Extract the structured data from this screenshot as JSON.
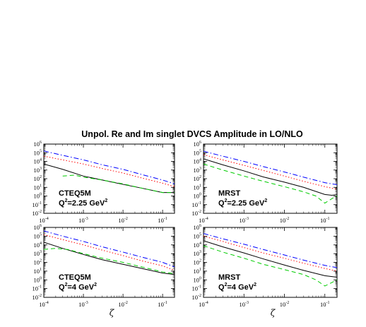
{
  "chart_data": {
    "type": "line",
    "title": "Unpol. Re and Im singlet DVCS Amplitude in LO/NLO",
    "xlabel": "ζ",
    "x_scale": "log",
    "y_scale": "log",
    "xlim": [
      0.0001,
      0.2
    ],
    "ylim": [
      0.01,
      1000000
    ],
    "x_ticks": [
      {
        "base": "10",
        "exp": "-4",
        "value": 0.0001
      },
      {
        "base": "10",
        "exp": "-3",
        "value": 0.001
      },
      {
        "base": "10",
        "exp": "-2",
        "value": 0.01
      },
      {
        "base": "10",
        "exp": "-1",
        "value": 0.1
      }
    ],
    "y_ticks": [
      {
        "base": "10",
        "exp": "-2",
        "value": 0.01
      },
      {
        "base": "10",
        "exp": "-1",
        "value": 0.1
      },
      {
        "base": "10",
        "exp": "0",
        "value": 1
      },
      {
        "base": "10",
        "exp": "1",
        "value": 10
      },
      {
        "base": "10",
        "exp": "2",
        "value": 100
      },
      {
        "base": "10",
        "exp": "3",
        "value": 1000
      },
      {
        "base": "10",
        "exp": "4",
        "value": 10000
      },
      {
        "base": "10",
        "exp": "5",
        "value": 100000
      },
      {
        "base": "10",
        "exp": "6",
        "value": 1000000
      }
    ],
    "series_styles": [
      {
        "color": "#000000",
        "dash": "none"
      },
      {
        "color": "#00cc00",
        "dash": "6,4"
      },
      {
        "color": "#ff0000",
        "dash": "1.5,2.5"
      },
      {
        "color": "#0000ff",
        "dash": "7,3,1.5,3"
      }
    ],
    "panels": [
      {
        "id": "cteq-225",
        "label_line1": "CTEQ5M",
        "q_prefix": "Q",
        "q_sup": "2",
        "q_value": "=2.25 GeV",
        "q_unit_sup": "2",
        "series": [
          {
            "x": [
              0.0001,
              0.0003,
              0.001,
              0.003,
              0.01,
              0.03,
              0.1,
              0.2
            ],
            "y": [
              5000,
              1200,
              200,
              70,
              22,
              8,
              2.5,
              2.5
            ]
          },
          {
            "x": [
              0.0003,
              0.0006,
              0.001,
              0.003,
              0.01,
              0.03,
              0.1,
              0.2
            ],
            "y": [
              200,
              260,
              150,
              70,
              25,
              8,
              2.5,
              2.5
            ]
          },
          {
            "x": [
              0.0001,
              0.0003,
              0.001,
              0.003,
              0.01,
              0.03,
              0.1,
              0.2
            ],
            "y": [
              40000,
              15000,
              5000,
              1500,
              450,
              120,
              30,
              12
            ]
          },
          {
            "x": [
              0.0001,
              0.0003,
              0.001,
              0.003,
              0.01,
              0.03,
              0.1,
              0.2
            ],
            "y": [
              160000,
              50000,
              15000,
              4000,
              1200,
              300,
              70,
              25
            ]
          }
        ]
      },
      {
        "id": "mrst-225",
        "label_line1": "MRST",
        "q_prefix": "Q",
        "q_sup": "2",
        "q_value": "=2.25 GeV",
        "q_unit_sup": "2",
        "series": [
          {
            "x": [
              0.0001,
              0.0003,
              0.001,
              0.003,
              0.01,
              0.03,
              0.1,
              0.15,
              0.2
            ],
            "y": [
              20000,
              4000,
              800,
              160,
              40,
              10,
              1.5,
              1.2,
              1.5
            ]
          },
          {
            "x": [
              0.0001,
              0.0003,
              0.001,
              0.003,
              0.01,
              0.03,
              0.06,
              0.1,
              0.15,
              0.2
            ],
            "y": [
              5000,
              1000,
              200,
              50,
              12,
              3,
              1,
              0.15,
              0.5,
              1
            ]
          },
          {
            "x": [
              0.0001,
              0.0003,
              0.001,
              0.003,
              0.01,
              0.03,
              0.1,
              0.2
            ],
            "y": [
              60000,
              15000,
              3500,
              900,
              200,
              50,
              12,
              6
            ]
          },
          {
            "x": [
              0.0001,
              0.0003,
              0.001,
              0.003,
              0.01,
              0.03,
              0.1,
              0.2
            ],
            "y": [
              150000,
              40000,
              10000,
              2500,
              600,
              150,
              35,
              20
            ]
          }
        ]
      },
      {
        "id": "cteq-4",
        "label_line1": "CTEQ5M",
        "q_prefix": "Q",
        "q_sup": "2",
        "q_value": "=4 GeV",
        "q_unit_sup": "2",
        "series": [
          {
            "x": [
              0.0001,
              0.0003,
              0.001,
              0.003,
              0.01,
              0.03,
              0.1,
              0.2
            ],
            "y": [
              20000,
              4000,
              800,
              200,
              60,
              20,
              6,
              4
            ]
          },
          {
            "x": [
              0.0001,
              0.0002,
              0.0004,
              0.001,
              0.003,
              0.01,
              0.03,
              0.1,
              0.2
            ],
            "y": [
              3000,
              4000,
              3000,
              1000,
              300,
              100,
              30,
              8,
              5
            ]
          },
          {
            "x": [
              0.0001,
              0.0003,
              0.001,
              0.003,
              0.01,
              0.03,
              0.1,
              0.2
            ],
            "y": [
              150000,
              40000,
              10000,
              2500,
              600,
              150,
              40,
              12
            ]
          },
          {
            "x": [
              0.0001,
              0.0003,
              0.001,
              0.003,
              0.01,
              0.03,
              0.1,
              0.2
            ],
            "y": [
              400000,
              100000,
              25000,
              6000,
              1500,
              400,
              100,
              30
            ]
          }
        ]
      },
      {
        "id": "mrst-4",
        "label_line1": "MRST",
        "q_prefix": "Q",
        "q_sup": "2",
        "q_value": "=4 GeV",
        "q_unit_sup": "2",
        "series": [
          {
            "x": [
              0.0001,
              0.0003,
              0.001,
              0.003,
              0.01,
              0.03,
              0.1,
              0.2
            ],
            "y": [
              30000,
              6000,
              1200,
              250,
              50,
              12,
              3,
              2
            ]
          },
          {
            "x": [
              0.0001,
              0.0003,
              0.001,
              0.003,
              0.01,
              0.03,
              0.06,
              0.1,
              0.15,
              0.2
            ],
            "y": [
              8000,
              1500,
              300,
              60,
              15,
              4,
              1,
              0.2,
              0.5,
              1
            ]
          },
          {
            "x": [
              0.0001,
              0.0003,
              0.001,
              0.003,
              0.01,
              0.03,
              0.1,
              0.2
            ],
            "y": [
              100000,
              25000,
              5000,
              1200,
              300,
              80,
              20,
              10
            ]
          },
          {
            "x": [
              0.0001,
              0.0003,
              0.001,
              0.003,
              0.01,
              0.03,
              0.1,
              0.2
            ],
            "y": [
              200000,
              50000,
              12000,
              3000,
              700,
              180,
              45,
              25
            ]
          }
        ]
      }
    ]
  }
}
